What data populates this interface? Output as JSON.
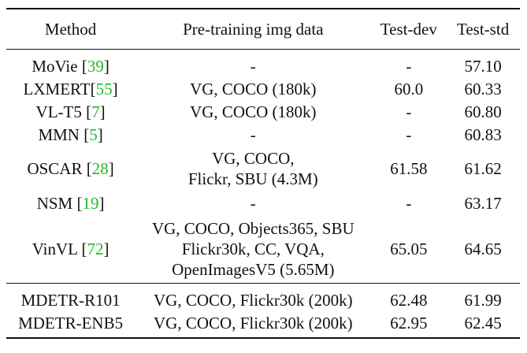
{
  "table": {
    "headers": {
      "method": "Method",
      "data": "Pre-training img data",
      "test_dev": "Test-dev",
      "test_std": "Test-std"
    },
    "rows": [
      {
        "method": "MoVie",
        "cite": "39",
        "cite_sep": " ",
        "data_lines": [
          "-"
        ],
        "test_dev": "-",
        "test_std": "57.10"
      },
      {
        "method": "LXMERT",
        "cite": "55",
        "cite_sep": "",
        "data_lines": [
          "VG, COCO (180k)"
        ],
        "test_dev": "60.0",
        "test_std": "60.33"
      },
      {
        "method": "VL-T5",
        "cite": "7",
        "cite_sep": " ",
        "data_lines": [
          "VG, COCO (180k)"
        ],
        "test_dev": "-",
        "test_std": "60.80"
      },
      {
        "method": "MMN",
        "cite": "5",
        "cite_sep": " ",
        "data_lines": [
          "-"
        ],
        "test_dev": "-",
        "test_std": "60.83"
      },
      {
        "method": "OSCAR",
        "cite": "28",
        "cite_sep": " ",
        "data_lines": [
          "VG, COCO,",
          "Flickr, SBU (4.3M)"
        ],
        "test_dev": "61.58",
        "test_std": "61.62"
      },
      {
        "method": "NSM",
        "cite": "19",
        "cite_sep": " ",
        "data_lines": [
          "-"
        ],
        "test_dev": "-",
        "test_std": "63.17"
      },
      {
        "method": "VinVL",
        "cite": "72",
        "cite_sep": " ",
        "data_lines": [
          "VG, COCO, Objects365, SBU",
          "Flickr30k, CC, VQA,",
          "OpenImagesV5 (5.65M)"
        ],
        "test_dev": "65.05",
        "test_std": "64.65"
      }
    ],
    "ours": [
      {
        "method": "MDETR-R101",
        "data": "VG, COCO, Flickr30k (200k)",
        "test_dev": "62.48",
        "test_std": "61.99"
      },
      {
        "method": "MDETR-ENB5",
        "data": "VG, COCO, Flickr30k (200k)",
        "test_dev": "62.95",
        "test_std": "62.45"
      }
    ]
  },
  "colors": {
    "citation": "#22bb22",
    "text": "#111111",
    "rule": "#111111"
  }
}
